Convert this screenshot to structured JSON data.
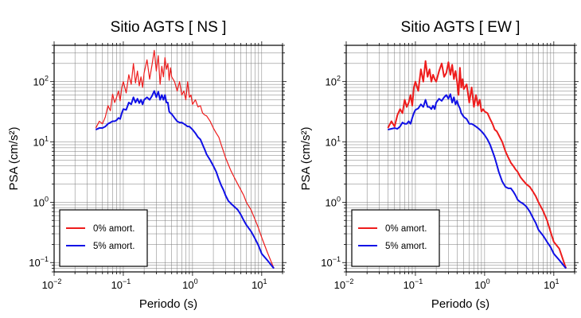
{
  "chart_data": [
    {
      "type": "line",
      "title": "Sitio AGTS [ NS ]",
      "xlabel": "Periodo (s)",
      "ylabel": "PSA (cm/s²)",
      "xscale": "log",
      "yscale": "log",
      "xlim": [
        0.01,
        20
      ],
      "ylim": [
        0.07,
        400
      ],
      "grid": true,
      "legend_position": "bottom-left",
      "xticks": [
        {
          "base": "10",
          "exp": "−2"
        },
        {
          "base": "10",
          "exp": "−1"
        },
        {
          "base": "10",
          "exp": "0"
        },
        {
          "base": "10",
          "exp": "1"
        }
      ],
      "yticks": [
        {
          "base": "10",
          "exp": "−1"
        },
        {
          "base": "10",
          "exp": "0"
        },
        {
          "base": "10",
          "exp": "1"
        },
        {
          "base": "10",
          "exp": "2"
        }
      ],
      "series": [
        {
          "name": "0% amort.",
          "color": "#ee1c1c",
          "x": [
            0.04,
            0.045,
            0.05,
            0.055,
            0.06,
            0.065,
            0.07,
            0.075,
            0.08,
            0.085,
            0.09,
            0.095,
            0.1,
            0.11,
            0.12,
            0.13,
            0.14,
            0.15,
            0.16,
            0.17,
            0.18,
            0.19,
            0.2,
            0.22,
            0.24,
            0.26,
            0.28,
            0.3,
            0.32,
            0.34,
            0.36,
            0.38,
            0.4,
            0.42,
            0.44,
            0.46,
            0.48,
            0.5,
            0.55,
            0.6,
            0.65,
            0.7,
            0.75,
            0.8,
            0.85,
            0.9,
            0.95,
            1.0,
            1.1,
            1.2,
            1.3,
            1.4,
            1.5,
            1.6,
            1.8,
            2.0,
            2.2,
            2.4,
            2.6,
            2.8,
            3.0,
            3.3,
            3.6,
            4.0,
            4.5,
            5.0,
            5.5,
            6.0,
            7.0,
            8.0,
            9.0,
            10.0,
            12.0,
            15.0
          ],
          "y": [
            17,
            22,
            20,
            26,
            40,
            33,
            62,
            45,
            55,
            70,
            48,
            80,
            100,
            65,
            130,
            90,
            200,
            95,
            150,
            85,
            120,
            80,
            140,
            230,
            110,
            190,
            330,
            150,
            270,
            90,
            180,
            120,
            250,
            160,
            200,
            105,
            170,
            120,
            100,
            70,
            100,
            60,
            70,
            50,
            100,
            55,
            60,
            42,
            50,
            38,
            40,
            30,
            28,
            27,
            22,
            17,
            14,
            12,
            9,
            7,
            5.5,
            4.2,
            3.3,
            2.6,
            2.0,
            1.6,
            1.3,
            1.0,
            0.75,
            0.52,
            0.37,
            0.26,
            0.15,
            0.08
          ]
        },
        {
          "name": "5% amort.",
          "color": "#1010e6",
          "x": [
            0.04,
            0.045,
            0.05,
            0.055,
            0.06,
            0.065,
            0.07,
            0.075,
            0.08,
            0.085,
            0.09,
            0.095,
            0.1,
            0.11,
            0.12,
            0.13,
            0.14,
            0.15,
            0.16,
            0.17,
            0.18,
            0.19,
            0.2,
            0.22,
            0.24,
            0.26,
            0.28,
            0.3,
            0.32,
            0.34,
            0.36,
            0.38,
            0.4,
            0.42,
            0.44,
            0.46,
            0.48,
            0.5,
            0.55,
            0.6,
            0.65,
            0.7,
            0.75,
            0.8,
            0.85,
            0.9,
            0.95,
            1.0,
            1.1,
            1.2,
            1.3,
            1.4,
            1.5,
            1.6,
            1.8,
            2.0,
            2.2,
            2.4,
            2.6,
            2.8,
            3.0,
            3.3,
            3.6,
            4.0,
            4.5,
            5.0,
            5.5,
            6.0,
            7.0,
            8.0,
            9.0,
            10.0,
            12.0,
            15.0
          ],
          "y": [
            16,
            17,
            17,
            18,
            20,
            21,
            22,
            22,
            23,
            25,
            24,
            30,
            35,
            34,
            45,
            42,
            55,
            45,
            52,
            44,
            50,
            42,
            50,
            55,
            50,
            58,
            70,
            55,
            68,
            50,
            60,
            50,
            60,
            45,
            45,
            32,
            30,
            29,
            25,
            22,
            21,
            21,
            20,
            19,
            18,
            18,
            17,
            16,
            14,
            12,
            11,
            9,
            7.5,
            6.2,
            5.0,
            4.0,
            3.2,
            2.4,
            1.9,
            1.6,
            1.3,
            1.05,
            0.95,
            0.85,
            0.75,
            0.62,
            0.5,
            0.42,
            0.33,
            0.25,
            0.19,
            0.14,
            0.11,
            0.08
          ]
        }
      ]
    },
    {
      "type": "line",
      "title": "Sitio AGTS [ EW ]",
      "xlabel": "Periodo (s)",
      "ylabel": "PSA (cm/s²)",
      "xscale": "log",
      "yscale": "log",
      "xlim": [
        0.01,
        20
      ],
      "ylim": [
        0.07,
        400
      ],
      "grid": true,
      "legend_position": "bottom-left",
      "xticks": [
        {
          "base": "10",
          "exp": "−2"
        },
        {
          "base": "10",
          "exp": "−1"
        },
        {
          "base": "10",
          "exp": "0"
        },
        {
          "base": "10",
          "exp": "1"
        }
      ],
      "yticks": [
        {
          "base": "10",
          "exp": "−1"
        },
        {
          "base": "10",
          "exp": "0"
        },
        {
          "base": "10",
          "exp": "1"
        },
        {
          "base": "10",
          "exp": "2"
        }
      ],
      "series": [
        {
          "name": "0% amort.",
          "color": "#ee1c1c",
          "x": [
            0.04,
            0.045,
            0.05,
            0.055,
            0.06,
            0.065,
            0.07,
            0.075,
            0.08,
            0.085,
            0.09,
            0.095,
            0.1,
            0.11,
            0.12,
            0.13,
            0.14,
            0.15,
            0.16,
            0.17,
            0.18,
            0.19,
            0.2,
            0.22,
            0.24,
            0.26,
            0.28,
            0.3,
            0.32,
            0.34,
            0.36,
            0.38,
            0.4,
            0.42,
            0.44,
            0.46,
            0.48,
            0.5,
            0.55,
            0.6,
            0.65,
            0.7,
            0.75,
            0.8,
            0.85,
            0.9,
            0.95,
            1.0,
            1.1,
            1.2,
            1.3,
            1.4,
            1.5,
            1.6,
            1.8,
            2.0,
            2.2,
            2.4,
            2.6,
            2.8,
            3.0,
            3.3,
            3.6,
            4.0,
            4.5,
            5.0,
            5.5,
            6.0,
            7.0,
            8.0,
            9.0,
            10.0,
            12.0,
            15.0
          ],
          "y": [
            17,
            22,
            18,
            28,
            35,
            30,
            50,
            38,
            45,
            60,
            40,
            80,
            100,
            70,
            160,
            100,
            220,
            120,
            160,
            100,
            130,
            110,
            100,
            150,
            200,
            120,
            140,
            210,
            130,
            190,
            110,
            150,
            100,
            60,
            170,
            80,
            110,
            75,
            90,
            45,
            80,
            38,
            60,
            40,
            50,
            32,
            35,
            32,
            30,
            24,
            20,
            16,
            15,
            13,
            10,
            7.0,
            5.5,
            4.5,
            4.0,
            3.5,
            3.2,
            2.6,
            2.3,
            2.0,
            1.8,
            1.5,
            1.25,
            1.0,
            0.72,
            0.5,
            0.32,
            0.22,
            0.17,
            0.08
          ]
        },
        {
          "name": "5% amort.",
          "color": "#1010e6",
          "x": [
            0.04,
            0.045,
            0.05,
            0.055,
            0.06,
            0.065,
            0.07,
            0.075,
            0.08,
            0.085,
            0.09,
            0.095,
            0.1,
            0.11,
            0.12,
            0.13,
            0.14,
            0.15,
            0.16,
            0.17,
            0.18,
            0.19,
            0.2,
            0.22,
            0.24,
            0.26,
            0.28,
            0.3,
            0.32,
            0.34,
            0.36,
            0.38,
            0.4,
            0.42,
            0.44,
            0.46,
            0.48,
            0.5,
            0.55,
            0.6,
            0.65,
            0.7,
            0.75,
            0.8,
            0.85,
            0.9,
            0.95,
            1.0,
            1.1,
            1.2,
            1.3,
            1.4,
            1.5,
            1.6,
            1.8,
            2.0,
            2.2,
            2.4,
            2.6,
            2.8,
            3.0,
            3.3,
            3.6,
            4.0,
            4.5,
            5.0,
            5.5,
            6.0,
            7.0,
            8.0,
            9.0,
            10.0,
            12.0,
            15.0
          ],
          "y": [
            16,
            16.5,
            17,
            16.5,
            18,
            21,
            20,
            20,
            22,
            20,
            25,
            30,
            34,
            36,
            42,
            38,
            50,
            38,
            38,
            35,
            40,
            35,
            45,
            52,
            48,
            55,
            60,
            52,
            62,
            45,
            55,
            42,
            48,
            40,
            36,
            30,
            28,
            26,
            24,
            20,
            20,
            19,
            18,
            17,
            16,
            15,
            14,
            13,
            11,
            9,
            7.0,
            5.5,
            4.2,
            3.2,
            2.2,
            1.8,
            1.7,
            1.7,
            1.5,
            1.3,
            1.1,
            1.0,
            0.95,
            0.85,
            0.7,
            0.55,
            0.45,
            0.35,
            0.28,
            0.22,
            0.18,
            0.14,
            0.11,
            0.08
          ]
        }
      ]
    }
  ]
}
